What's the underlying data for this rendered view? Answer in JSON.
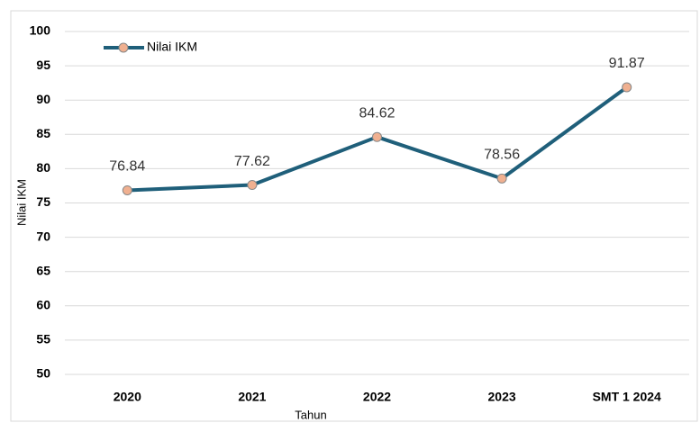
{
  "chart_data": {
    "type": "line",
    "x_label": "Tahun",
    "y_label": "Nilai IKM",
    "categories": [
      "2020",
      "2021",
      "2022",
      "2023",
      "SMT 1 2024"
    ],
    "series": [
      {
        "name": "Nilai IKM",
        "color": "#1f5f7a",
        "marker_color": "#f0b090",
        "values": [
          76.84,
          77.62,
          84.62,
          78.56,
          91.87
        ]
      }
    ],
    "ylim": [
      50,
      100
    ],
    "yticks": [
      50,
      55,
      60,
      65,
      70,
      75,
      80,
      85,
      90,
      95,
      100
    ],
    "grid": true,
    "legend": "top-left",
    "data_labels": true
  }
}
